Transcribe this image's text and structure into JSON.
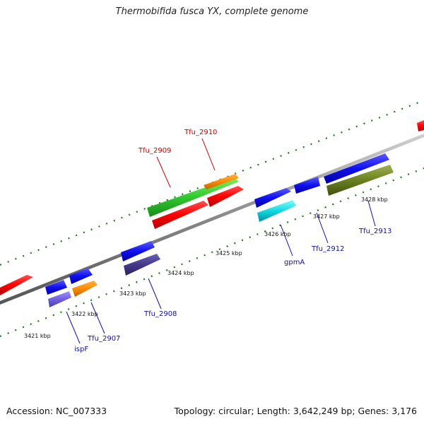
{
  "title": "Thermobifida fusca YX, complete genome",
  "footer": {
    "accession": "Accession: NC_007333",
    "topology": "Topology: circular; Length: 3,642,249 bp; Genes: 3,176"
  },
  "colors": {
    "backbone": "#8c8c8c",
    "ticks": "#1a7a1a",
    "label_red": "#cc0000",
    "label_blue": "#1010a0"
  },
  "kbp_labels": [
    "3421 kbp",
    "3422 kbp",
    "3423 kbp",
    "3424 kbp",
    "3425 kbp",
    "3426 kbp",
    "3427 kbp",
    "3428 kbp"
  ],
  "gene_labels": [
    "Tfu_2909",
    "Tfu_2910",
    "ispF",
    "Tfu_2907",
    "Tfu_2908",
    "gpmA",
    "Tfu_2912",
    "Tfu_2913"
  ]
}
